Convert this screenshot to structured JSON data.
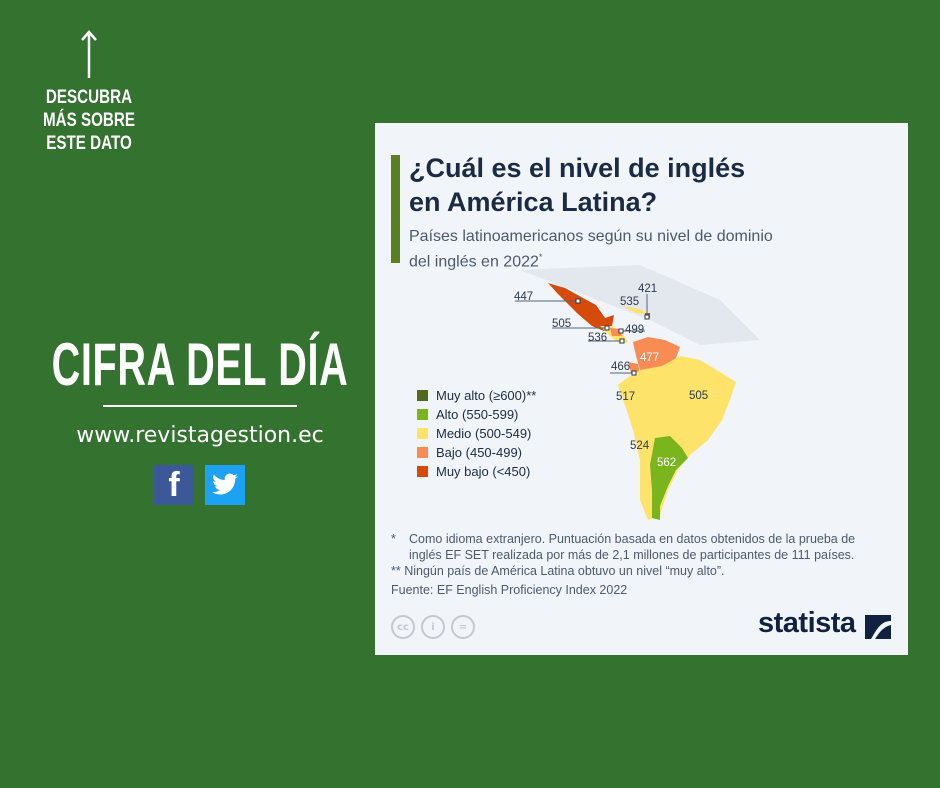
{
  "promo": {
    "discover": "DESCUBRA MÁS SOBRE ESTE DATO",
    "headline": "CIFRA DEL DÍA",
    "website": "www.revistagestion.ec",
    "social": [
      {
        "icon": "facebook-icon",
        "glyph": "f"
      },
      {
        "icon": "twitter-icon"
      }
    ]
  },
  "card": {
    "title_line1": "¿Cuál es el nivel de inglés",
    "title_line2": "en América Latina?",
    "subtitle_line1": "Países latinoamericanos según su nivel de dominio",
    "subtitle_line2": "del inglés en 2022",
    "subtitle_mark": "*",
    "legend": [
      {
        "label": "Muy alto (≥600)**",
        "color": "#4f6b1f"
      },
      {
        "label": "Alto (550-599)",
        "color": "#7ab51d"
      },
      {
        "label": "Medio (500-549)",
        "color": "#fde36a"
      },
      {
        "label": "Bajo (450-499)",
        "color": "#f98b55"
      },
      {
        "label": "Muy bajo (<450)",
        "color": "#d64a0c"
      }
    ],
    "map_values": {
      "mexico": "447",
      "cuba": "535",
      "haiti": "421",
      "guatemala": "505",
      "honduras": "499",
      "costa_rica": "536",
      "venezuela": "477",
      "ecuador": "466",
      "peru": "517",
      "brazil": "505",
      "chile": "524",
      "argentina": "562"
    },
    "note1_mark": "*",
    "note1_line1": "Como idioma extranjero. Puntuación basada en datos obtenidos de la prueba de",
    "note1_line2": "inglés EF SET realizada por más de 2,1 millones de participantes de 111 países.",
    "note2": "** Ningún país de América Latina obtuvo un nivel “muy alto”.",
    "source": "Fuente: EF English Proficiency Index 2022",
    "license_icons": [
      "cc-icon",
      "attribution-icon",
      "no-derivatives-icon"
    ],
    "license_glyphs": [
      "cc",
      "i",
      "="
    ],
    "brand": "statista"
  }
}
